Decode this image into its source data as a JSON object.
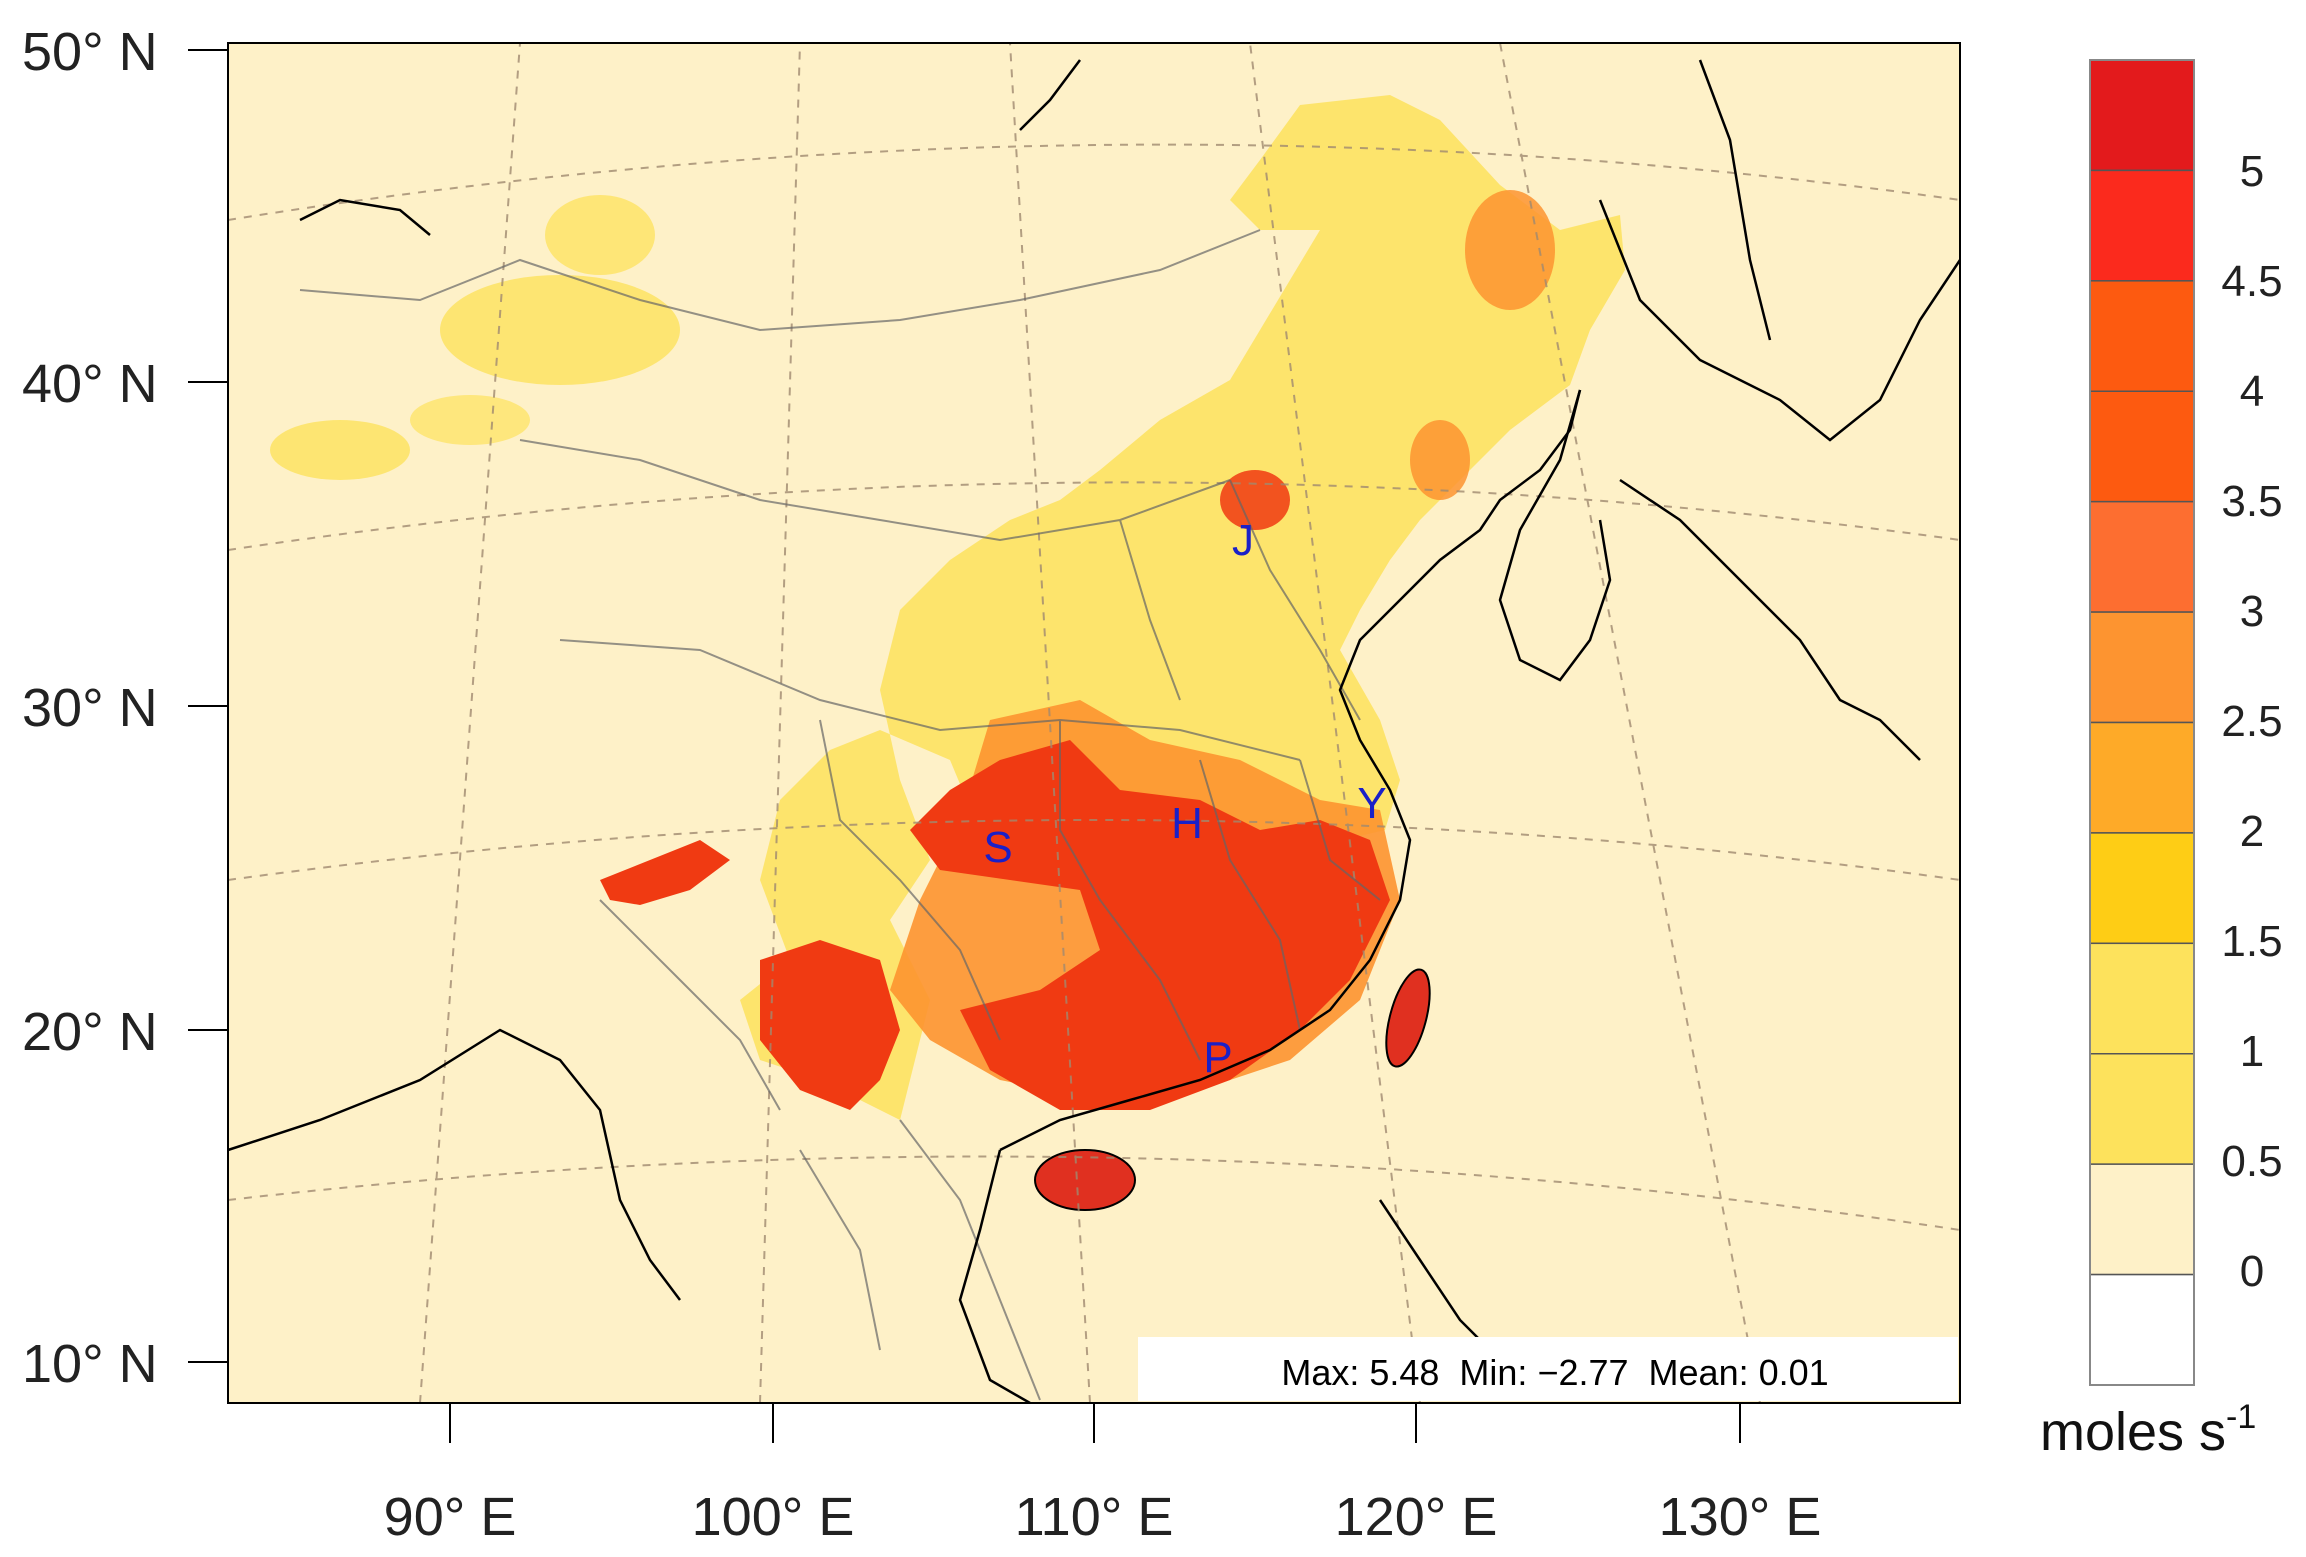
{
  "map": {
    "lat_labels": [
      "50° N",
      "40° N",
      "30° N",
      "20° N",
      "10° N"
    ],
    "lon_labels": [
      "90° E",
      "100° E",
      "110° E",
      "120° E",
      "130° E"
    ],
    "region_labels": [
      "J",
      "S",
      "H",
      "Y",
      "P"
    ],
    "stats": "Max: 5.48  Min: −2.77  Mean: 0.01"
  },
  "colorbar": {
    "tick_labels": [
      "5",
      "4.5",
      "4",
      "3.5",
      "3",
      "2.5",
      "2",
      "1.5",
      "1",
      "0.5",
      "0"
    ],
    "unit_main": "moles s",
    "unit_sup": "-1",
    "colors": [
      "#e31a1c",
      "#fb2a1d",
      "#fd5a10",
      "#fd5a10",
      "#fd6e30",
      "#fd9430",
      "#feaa28",
      "#fecd15",
      "#fde25c",
      "#fde25c",
      "#fef1c8",
      "#ffffff"
    ]
  },
  "colors": {
    "background": "#fef1c8",
    "region_label": "#1a20c8"
  }
}
